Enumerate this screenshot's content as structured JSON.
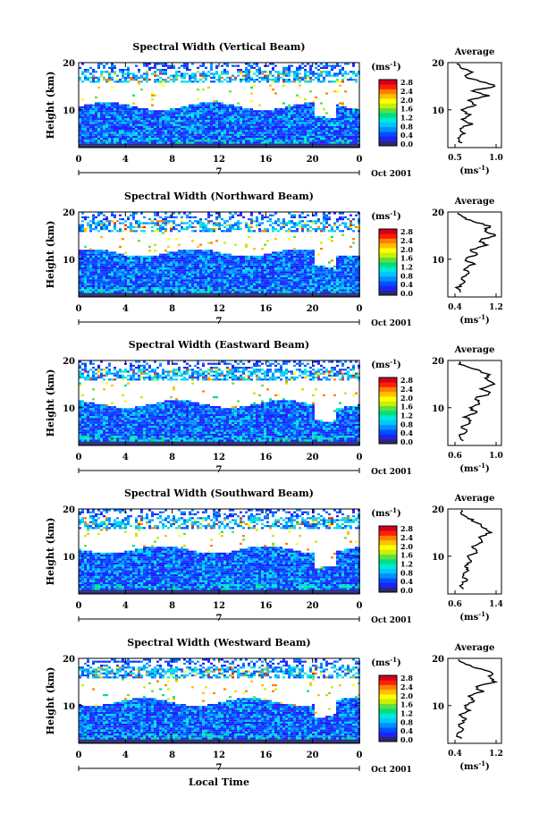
{
  "figure": {
    "common": {
      "legend_unit": "(ms⁻¹)",
      "legend_ticks": [
        "0.0",
        "0.4",
        "0.8",
        "1.2",
        "1.6",
        "2.0",
        "2.4",
        "2.8"
      ],
      "x_ticks": [
        "0",
        "4",
        "8",
        "12",
        "16",
        "20",
        "0"
      ],
      "date_label": "Oct 2001",
      "day_marker": "7",
      "y_axis_label": "Height (km)",
      "y_ticks": [
        "10",
        "20"
      ],
      "avg_title": "Average",
      "avg_xlabel": "(ms⁻¹)",
      "xlabel": "Local Time",
      "colors": [
        "#2a2a6e",
        "#2020ff",
        "#0050ff",
        "#0090ff",
        "#00c8ff",
        "#00e8d8",
        "#00e080",
        "#60e040",
        "#c8f000",
        "#ffff00",
        "#ffc000",
        "#ff8000",
        "#ff2000",
        "#d00020"
      ]
    }
  },
  "chart_data": [
    {
      "type": "heatmap",
      "title": "Spectral Width (Vertical Beam)",
      "x_range": [
        0,
        24
      ],
      "ylim": [
        2,
        20
      ],
      "colorbar_range": [
        0.0,
        2.8
      ],
      "average_profile": {
        "xlim": [
          0.5,
          1.0
        ],
        "x_ticks": [
          "0.5",
          "1.0"
        ],
        "height_km": [
          3,
          4,
          5,
          6,
          7,
          8,
          9,
          10,
          11,
          12,
          13,
          14,
          15,
          16,
          17,
          18,
          19,
          20
        ],
        "values": [
          0.62,
          0.58,
          0.66,
          0.6,
          0.72,
          0.64,
          0.7,
          0.62,
          0.76,
          0.68,
          0.88,
          0.72,
          0.95,
          0.8,
          0.66,
          0.74,
          0.62,
          0.58
        ]
      }
    },
    {
      "type": "heatmap",
      "title": "Spectral Width (Northward Beam)",
      "x_range": [
        0,
        24
      ],
      "ylim": [
        2,
        20
      ],
      "colorbar_range": [
        0.0,
        2.8
      ],
      "average_profile": {
        "xlim": [
          0.4,
          1.2
        ],
        "x_ticks": [
          "0.4",
          "1.2"
        ],
        "height_km": [
          3,
          4,
          5,
          6,
          7,
          8,
          9,
          10,
          11,
          12,
          13,
          14,
          15,
          16,
          17,
          18,
          19,
          20
        ],
        "values": [
          0.62,
          0.55,
          0.66,
          0.58,
          0.72,
          0.64,
          0.78,
          0.66,
          0.84,
          0.74,
          0.98,
          0.86,
          1.12,
          0.94,
          1.02,
          0.78,
          0.6,
          0.52
        ]
      }
    },
    {
      "type": "heatmap",
      "title": "Spectral Width (Eastward Beam)",
      "x_range": [
        0,
        24
      ],
      "ylim": [
        2,
        20
      ],
      "colorbar_range": [
        0.0,
        2.8
      ],
      "average_profile": {
        "xlim": [
          0.5,
          1.1
        ],
        "x_ticks": [
          "0.6",
          "1.0"
        ],
        "height_km": [
          3,
          4,
          5,
          6,
          7,
          8,
          9,
          10,
          11,
          12,
          13,
          14,
          15,
          16,
          17,
          18,
          19,
          20
        ],
        "values": [
          0.68,
          0.62,
          0.7,
          0.66,
          0.76,
          0.7,
          0.82,
          0.74,
          0.86,
          0.8,
          0.98,
          0.88,
          1.02,
          0.92,
          0.96,
          0.82,
          0.66,
          0.6
        ]
      }
    },
    {
      "type": "heatmap",
      "title": "Spectral Width (Southward Beam)",
      "x_range": [
        0,
        24
      ],
      "ylim": [
        2,
        20
      ],
      "colorbar_range": [
        0.0,
        2.8
      ],
      "average_profile": {
        "xlim": [
          0.4,
          1.4
        ],
        "x_ticks": [
          "0.6",
          "1.4"
        ],
        "height_km": [
          3,
          4,
          5,
          6,
          7,
          8,
          9,
          10,
          11,
          12,
          13,
          14,
          15,
          16,
          17,
          18,
          19,
          20
        ],
        "values": [
          0.7,
          0.64,
          0.74,
          0.68,
          0.8,
          0.72,
          0.86,
          0.78,
          0.96,
          0.86,
          1.08,
          0.98,
          1.2,
          1.05,
          0.96,
          0.8,
          0.66,
          0.6
        ]
      }
    },
    {
      "type": "heatmap",
      "title": "Spectral Width (Westward Beam)",
      "x_range": [
        0,
        24
      ],
      "ylim": [
        2,
        20
      ],
      "colorbar_range": [
        0.0,
        2.8
      ],
      "average_profile": {
        "xlim": [
          0.4,
          1.2
        ],
        "x_ticks": [
          "0.4",
          "1.2"
        ],
        "height_km": [
          3,
          4,
          5,
          6,
          7,
          8,
          9,
          10,
          11,
          12,
          13,
          14,
          15,
          16,
          17,
          18,
          19,
          20
        ],
        "values": [
          0.58,
          0.54,
          0.62,
          0.56,
          0.68,
          0.6,
          0.72,
          0.64,
          0.8,
          0.7,
          0.92,
          0.8,
          1.1,
          1.02,
          1.06,
          0.82,
          0.62,
          0.56
        ]
      }
    }
  ]
}
